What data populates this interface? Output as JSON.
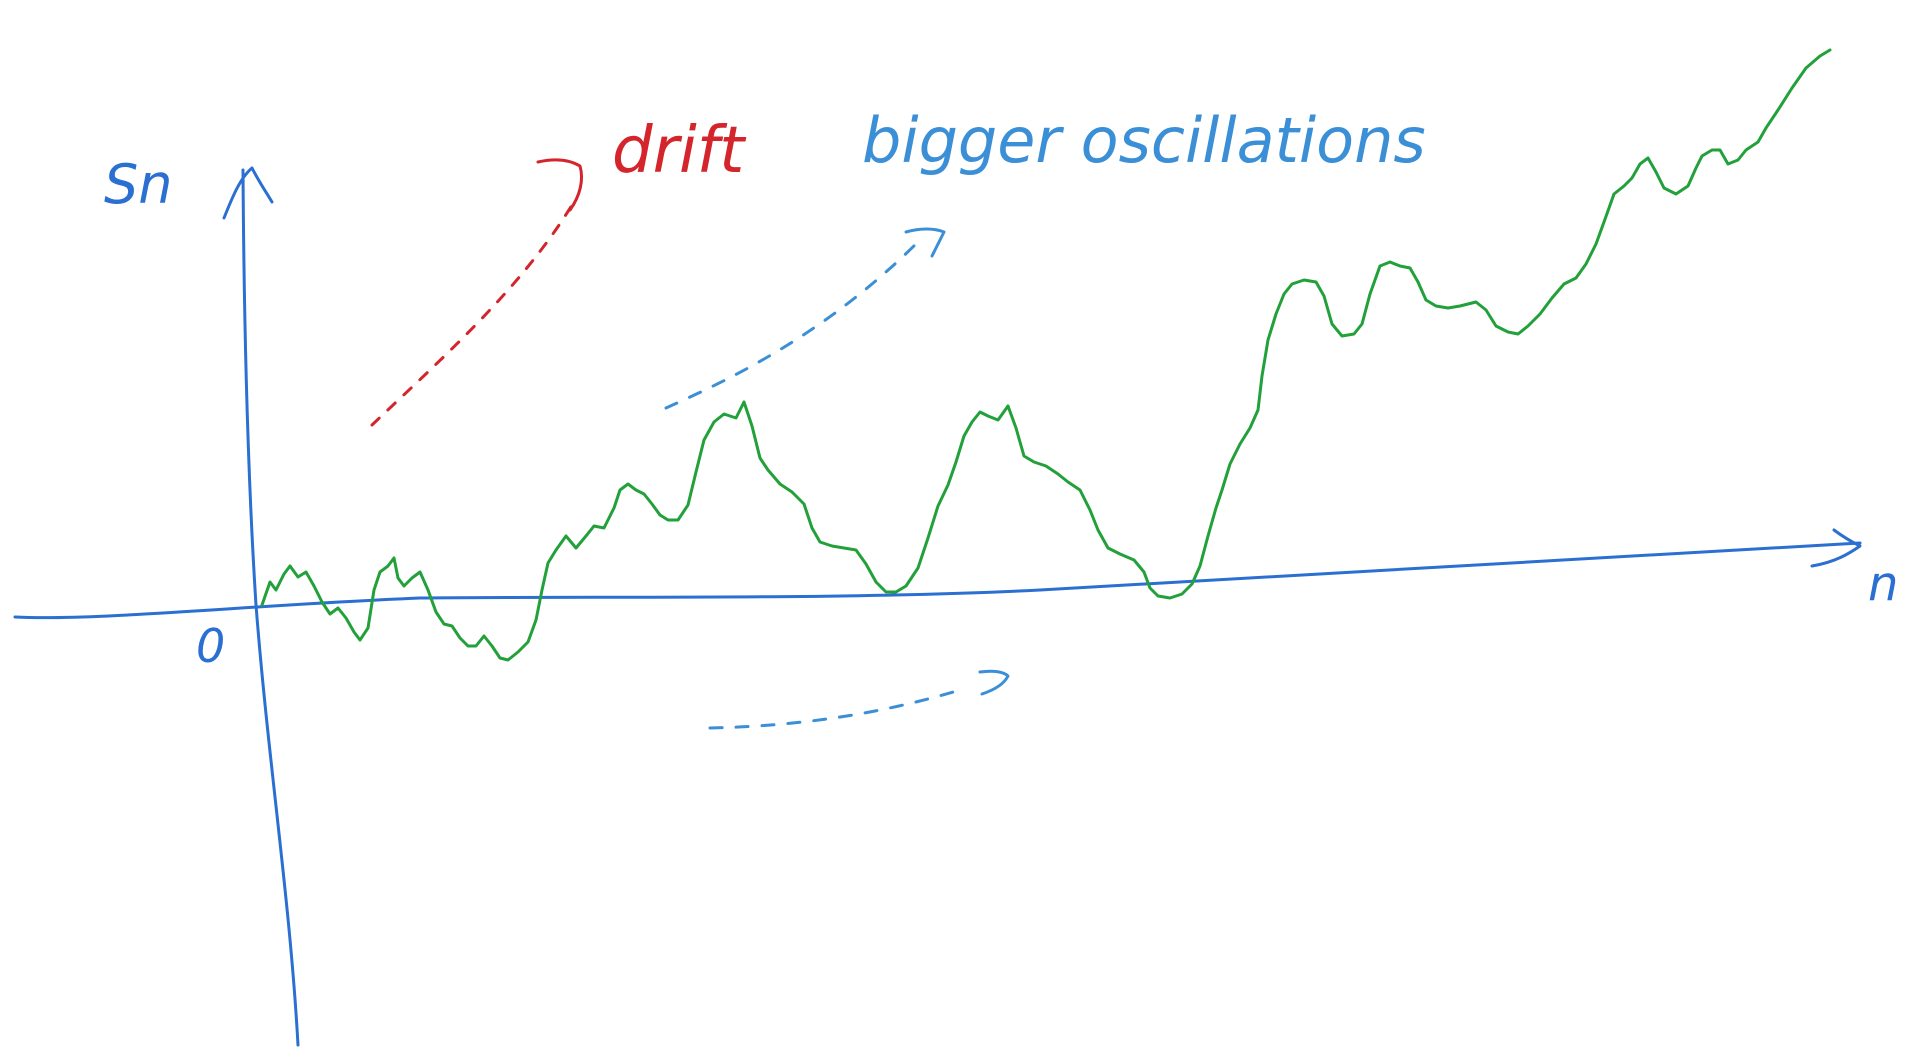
{
  "labels": {
    "y_axis": "Sn",
    "x_axis": "n",
    "origin": "0",
    "drift": "drift",
    "oscillations": "bigger oscillations"
  },
  "colors": {
    "axes": "#2a6fd1",
    "path": "#22a03a",
    "drift": "#d3252b",
    "annotation": "#3b8fd6",
    "background": "#ffffff"
  }
}
